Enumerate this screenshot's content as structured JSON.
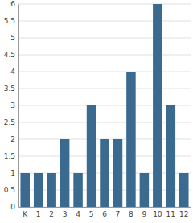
{
  "chart_data": {
    "type": "bar",
    "categories": [
      "K",
      "1",
      "2",
      "3",
      "4",
      "5",
      "6",
      "7",
      "8",
      "9",
      "10",
      "11",
      "12"
    ],
    "values": [
      1,
      1,
      1,
      2,
      1,
      3,
      2,
      2,
      4,
      1,
      6,
      3,
      1
    ],
    "color": "#3b6a90",
    "ylim": [
      0,
      6
    ],
    "yticks": [
      0,
      0.5,
      1,
      1.5,
      2,
      2.5,
      3,
      3.5,
      4,
      4.5,
      5,
      5.5,
      6
    ],
    "grid": true
  }
}
